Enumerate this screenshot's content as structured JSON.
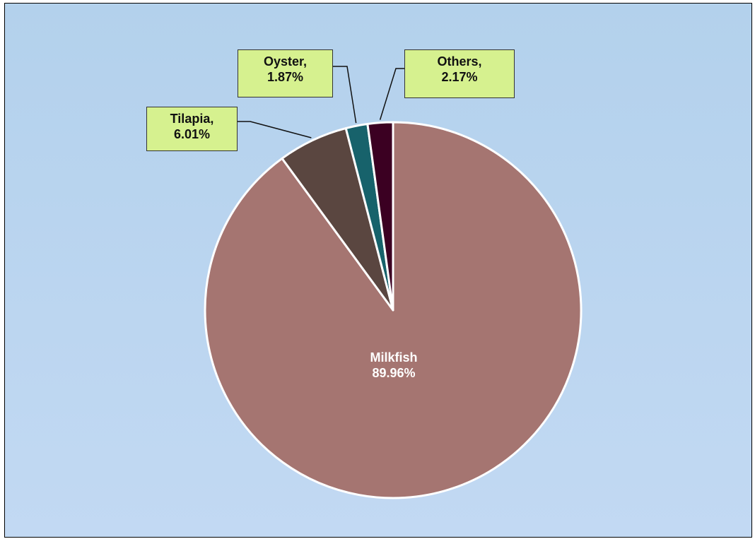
{
  "chart_data": {
    "type": "pie",
    "slices": [
      {
        "label": "Milkfish",
        "percent_text": "89.96%",
        "value": 89.96,
        "color": "#a57571"
      },
      {
        "label": "Tilapia,",
        "percent_text": "6.01%",
        "value": 6.01,
        "color": "#5a4640"
      },
      {
        "label": "Oyster,",
        "percent_text": "1.87%",
        "value": 1.87,
        "color": "#17626b"
      },
      {
        "label": "Others,",
        "percent_text": "2.17%",
        "value": 2.17,
        "color": "#3b0022"
      }
    ],
    "start_angle": "12 o'clock",
    "direction": "clockwise",
    "slice_order": [
      "Milkfish",
      "Tilapia",
      "Oyster",
      "Others"
    ],
    "background": [
      "#b3d1ec",
      "#c2d9f3"
    ],
    "callout_color": "#d6f18f"
  }
}
